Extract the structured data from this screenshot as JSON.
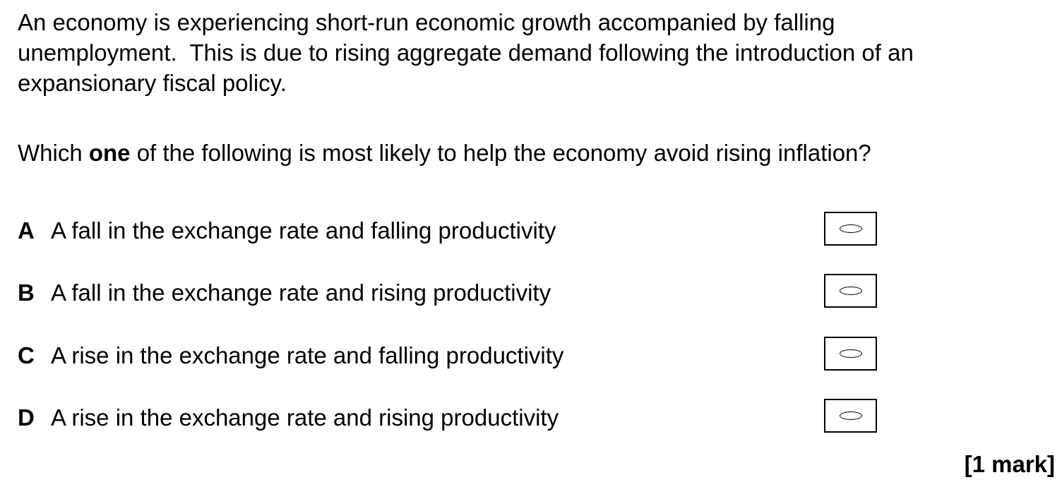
{
  "intro": {
    "line1": "An economy is experiencing short-run economic growth accompanied by falling",
    "line2": "unemployment.  This is due to rising aggregate demand following the introduction of an",
    "line3": "expansionary fiscal policy."
  },
  "question": {
    "prefix": "Which ",
    "emphasis": "one",
    "suffix": " of the following is most likely to help the economy avoid rising inflation?"
  },
  "options": [
    {
      "letter": "A",
      "text": "A fall in the exchange rate and falling productivity",
      "selected": false
    },
    {
      "letter": "B",
      "text": "A fall in the exchange rate and rising productivity",
      "selected": false
    },
    {
      "letter": "C",
      "text": "A rise in the exchange rate and falling productivity",
      "selected": false
    },
    {
      "letter": "D",
      "text": "A rise in the exchange rate and rising productivity",
      "selected": false
    }
  ],
  "marks": "[1 mark]",
  "colors": {
    "text": "#000000",
    "background": "#ffffff",
    "border": "#000000"
  }
}
